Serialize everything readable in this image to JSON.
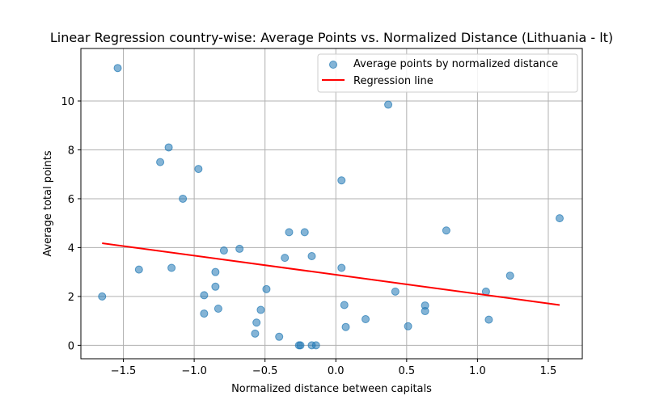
{
  "chart_data": {
    "type": "scatter",
    "title": "Linear Regression country-wise: Average Points vs. Normalized Distance (Lithuania - lt)",
    "xlabel": "Normalized distance between capitals",
    "ylabel": "Average total points",
    "xlim": [
      -1.8,
      1.74
    ],
    "ylim": [
      -0.55,
      12.15
    ],
    "xticks": [
      -1.5,
      -1.0,
      -0.5,
      0.0,
      0.5,
      1.0,
      1.5
    ],
    "xtick_labels": [
      "−1.5",
      "−1.0",
      "−0.5",
      "0.0",
      "0.5",
      "1.0",
      "1.5"
    ],
    "yticks": [
      0,
      2,
      4,
      6,
      8,
      10
    ],
    "ytick_labels": [
      "0",
      "2",
      "4",
      "6",
      "8",
      "10"
    ],
    "grid": true,
    "legend_position": "top-right",
    "colors": {
      "points": "#1f77b4",
      "regression": "#ff0000"
    },
    "series": [
      {
        "name": "Average points by normalized distance",
        "kind": "scatter",
        "points": [
          [
            -1.65,
            2.0
          ],
          [
            -1.54,
            11.35
          ],
          [
            -1.39,
            3.1
          ],
          [
            -1.24,
            7.5
          ],
          [
            -1.18,
            8.1
          ],
          [
            -1.16,
            3.17
          ],
          [
            -1.08,
            6.0
          ],
          [
            -0.97,
            7.22
          ],
          [
            -0.93,
            2.05
          ],
          [
            -0.93,
            1.3
          ],
          [
            -0.85,
            2.4
          ],
          [
            -0.85,
            3.0
          ],
          [
            -0.83,
            1.5
          ],
          [
            -0.79,
            3.88
          ],
          [
            -0.68,
            3.95
          ],
          [
            -0.57,
            0.48
          ],
          [
            -0.56,
            0.93
          ],
          [
            -0.53,
            1.45
          ],
          [
            -0.49,
            2.3
          ],
          [
            -0.4,
            0.35
          ],
          [
            -0.36,
            3.58
          ],
          [
            -0.33,
            4.63
          ],
          [
            -0.26,
            0.0
          ],
          [
            -0.25,
            0.0
          ],
          [
            -0.22,
            4.63
          ],
          [
            -0.17,
            0.0
          ],
          [
            -0.17,
            3.65
          ],
          [
            -0.14,
            0.0
          ],
          [
            0.04,
            3.17
          ],
          [
            0.04,
            6.75
          ],
          [
            0.06,
            1.65
          ],
          [
            0.07,
            0.75
          ],
          [
            0.21,
            1.07
          ],
          [
            0.37,
            9.85
          ],
          [
            0.42,
            2.2
          ],
          [
            0.51,
            0.78
          ],
          [
            0.63,
            1.63
          ],
          [
            0.63,
            1.4
          ],
          [
            0.78,
            4.7
          ],
          [
            1.06,
            2.2
          ],
          [
            1.08,
            1.05
          ],
          [
            1.23,
            2.85
          ],
          [
            1.58,
            5.2
          ]
        ]
      },
      {
        "name": "Regression line",
        "kind": "line",
        "points": [
          [
            -1.65,
            4.18
          ],
          [
            1.58,
            1.65
          ]
        ]
      }
    ]
  }
}
